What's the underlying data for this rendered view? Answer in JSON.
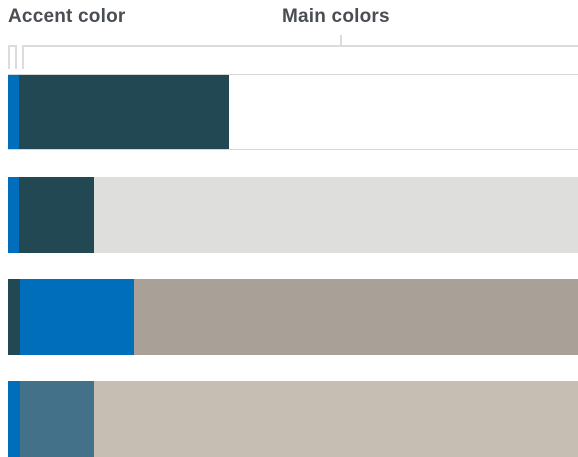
{
  "labels": {
    "accent": "Accent color",
    "main": "Main colors"
  },
  "rows": [
    {
      "accent": "#006eba",
      "main": "#224853",
      "background": "#ffffff"
    },
    {
      "accent": "#006eba",
      "main": "#224853",
      "background": "#dededc"
    },
    {
      "accent": "#224853",
      "main": "#006eba",
      "background": "#a9a097"
    },
    {
      "accent": "#006eba",
      "main": "#44718a",
      "background": "#c6beb2"
    }
  ]
}
